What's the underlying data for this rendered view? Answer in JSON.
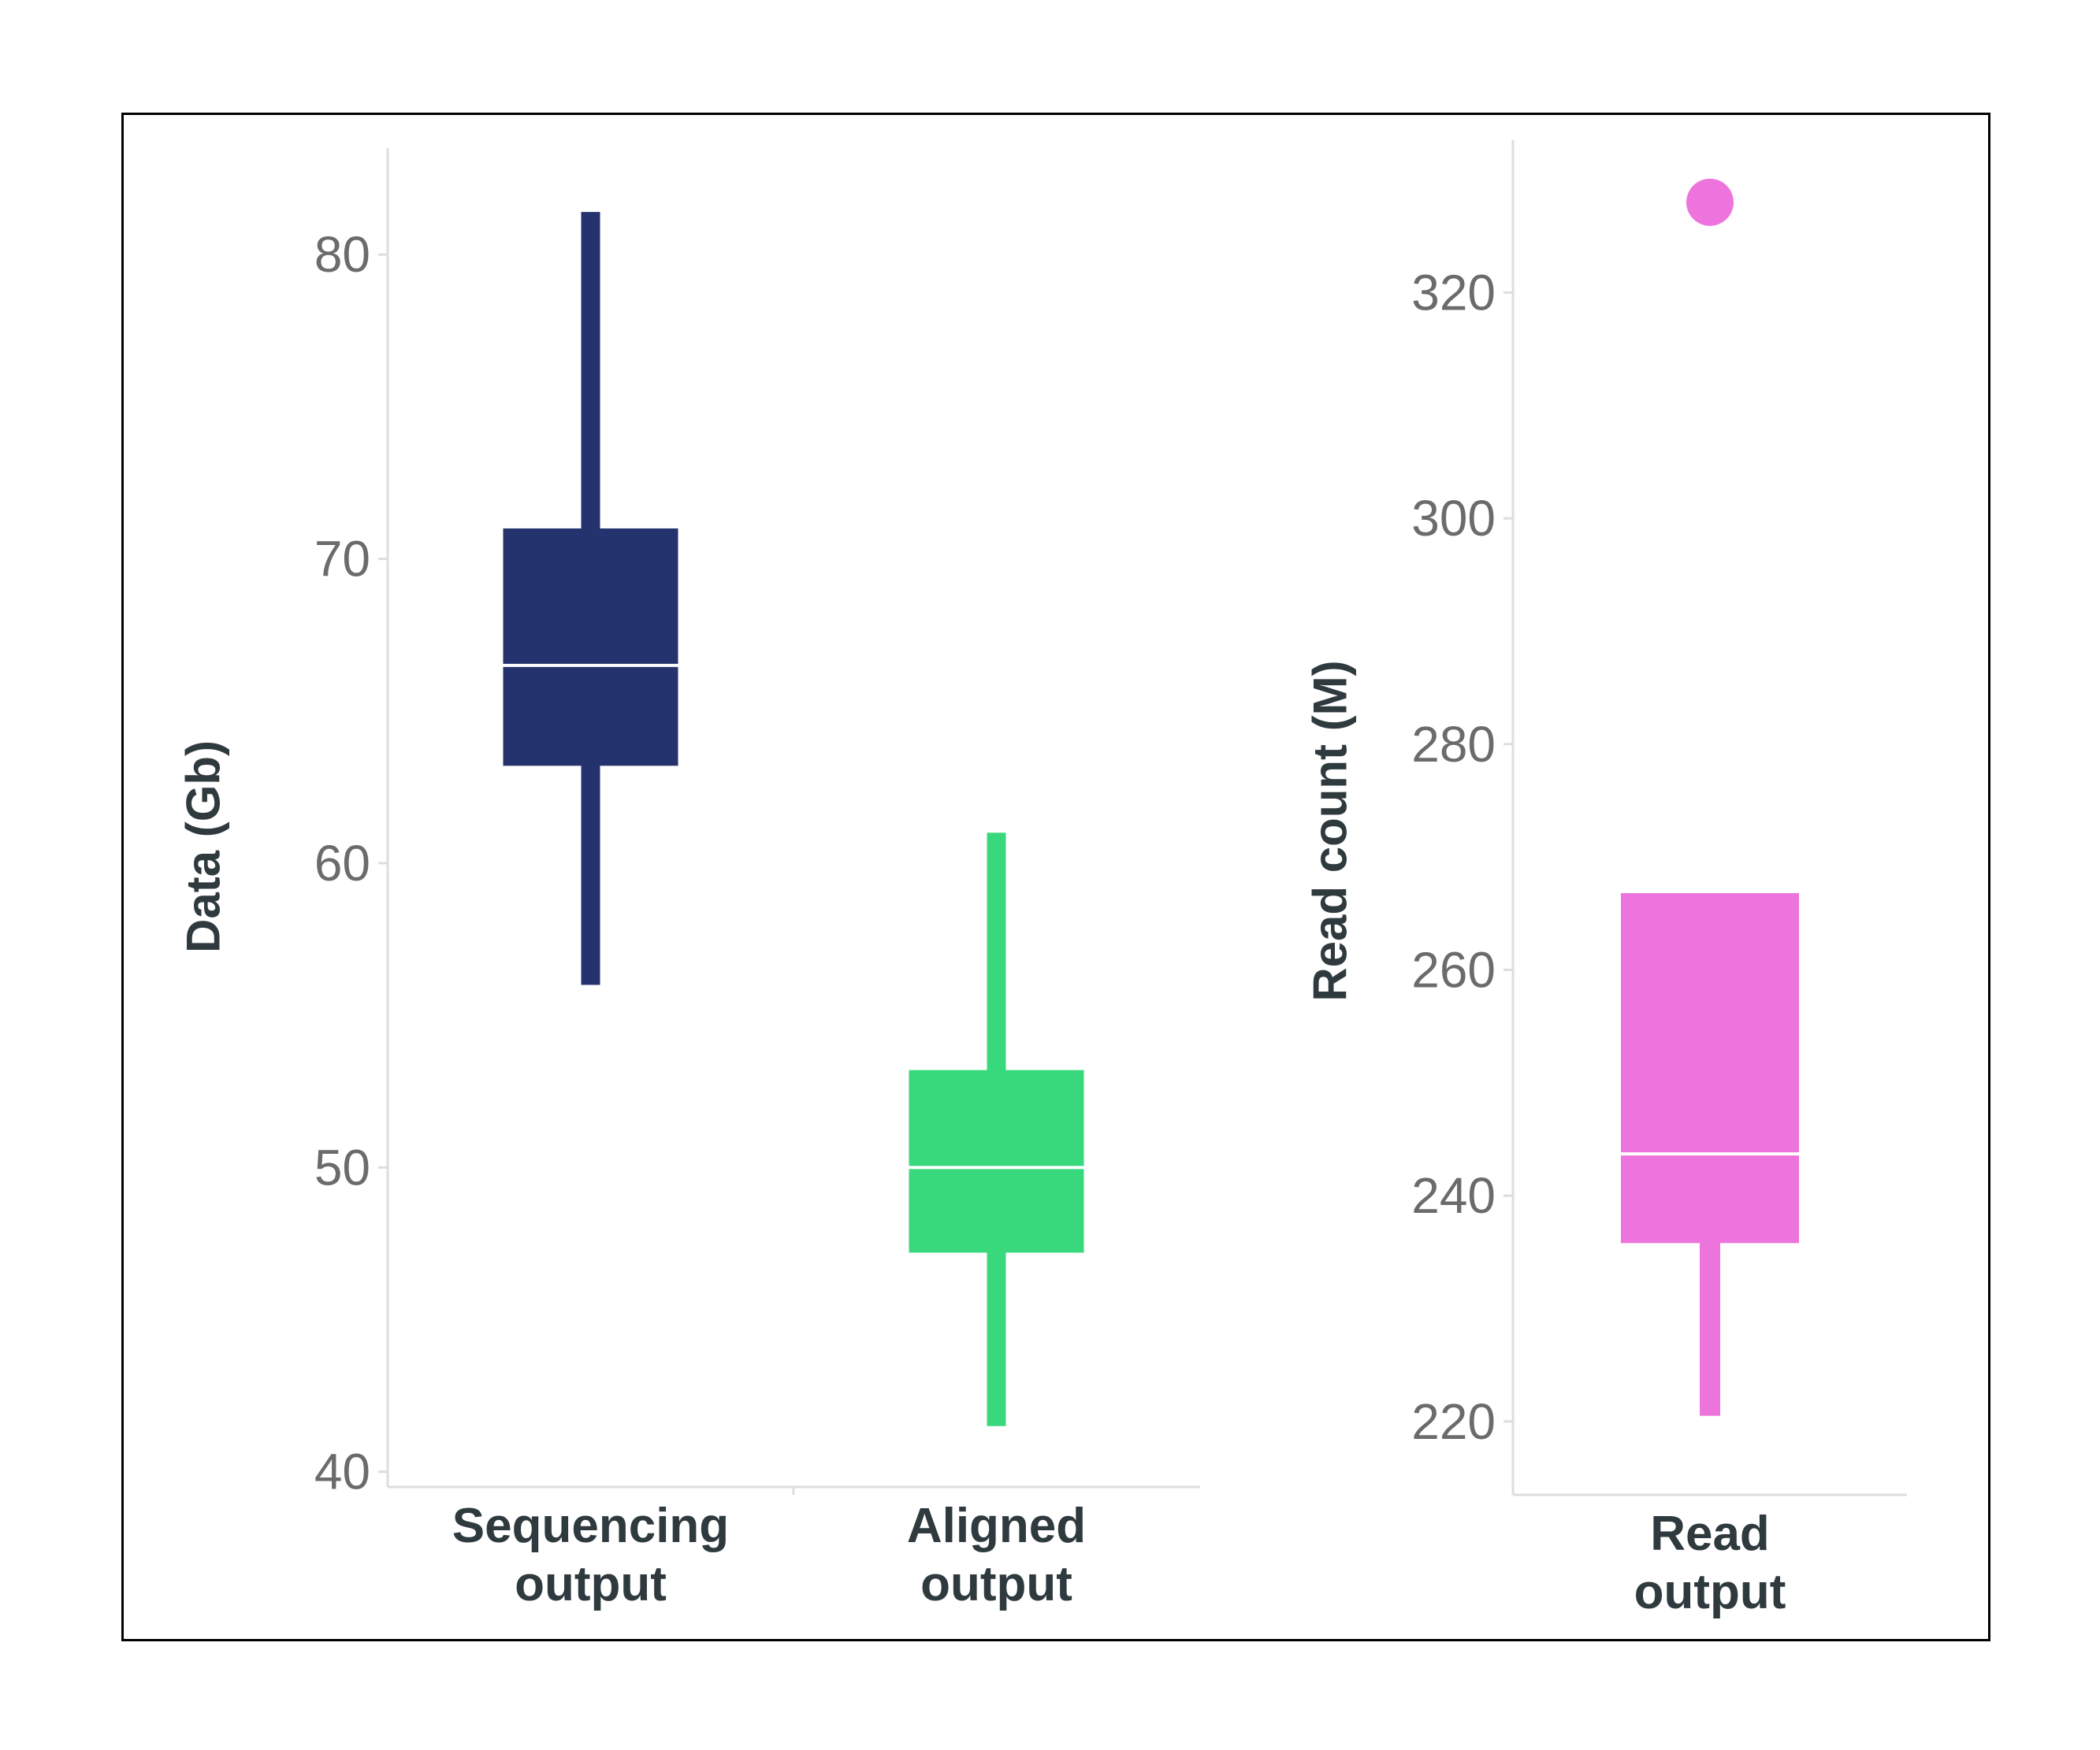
{
  "chart_data": [
    {
      "type": "boxplot",
      "ylabel": "Data (Gb)",
      "ylim": [
        39.5,
        83.5
      ],
      "yticks": [
        40,
        50,
        60,
        70,
        80
      ],
      "grid": false,
      "categories": [
        {
          "label_lines": [
            "Sequencing",
            "output"
          ],
          "color": "#24326e",
          "whisker_low": 56,
          "q1": 63.2,
          "median": 66.5,
          "q3": 71,
          "whisker_high": 81.4,
          "outliers": []
        },
        {
          "label_lines": [
            "Aligned",
            "output"
          ],
          "color": "#38d97c",
          "whisker_low": 41.5,
          "q1": 47.2,
          "median": 50,
          "q3": 53.2,
          "whisker_high": 61,
          "outliers": []
        }
      ]
    },
    {
      "type": "boxplot",
      "ylabel": "Read count (M)",
      "ylim": [
        213.5,
        333.5
      ],
      "yticks": [
        220,
        240,
        260,
        280,
        300,
        320
      ],
      "grid": false,
      "categories": [
        {
          "label_lines": [
            "Read",
            "output"
          ],
          "color": "#ee74dd",
          "whisker_low": 220.5,
          "q1": 235.8,
          "median": 243.7,
          "q3": 266.8,
          "whisker_high": 266.8,
          "outliers": [
            328
          ]
        }
      ]
    }
  ]
}
